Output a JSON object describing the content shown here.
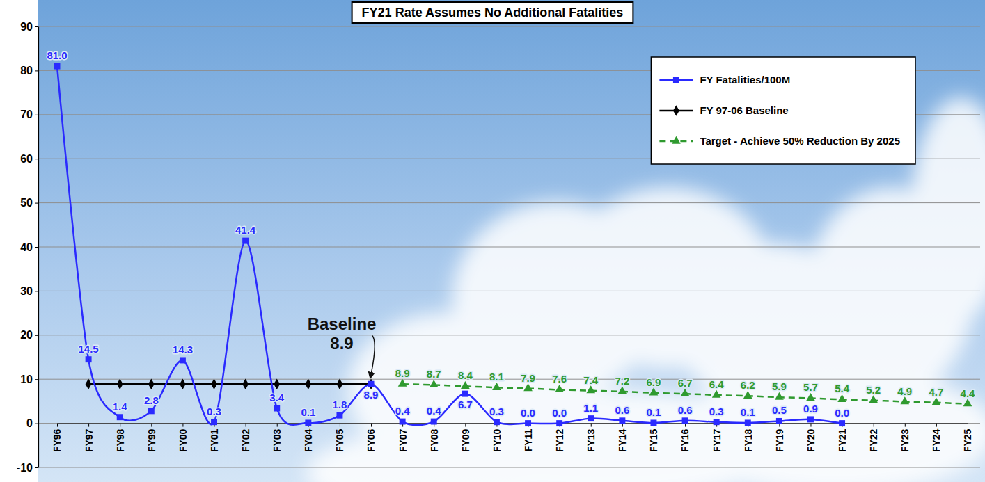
{
  "chart_data": {
    "type": "line",
    "title": "FY21 Rate Assumes No Additional Fatalities",
    "categories": [
      "FY96",
      "FY97",
      "FY98",
      "FY99",
      "FY00",
      "FY01",
      "FY02",
      "FY03",
      "FY04",
      "FY05",
      "FY06",
      "FY07",
      "FY08",
      "FY09",
      "FY10",
      "FY11",
      "FY12",
      "FY13",
      "FY14",
      "FY15",
      "FY16",
      "FY17",
      "FY18",
      "FY19",
      "FY20",
      "FY21",
      "FY22",
      "FY23",
      "FY24",
      "FY25"
    ],
    "ylim": [
      -10,
      90
    ],
    "yticks": [
      -10,
      0,
      10,
      20,
      30,
      40,
      50,
      60,
      70,
      80,
      90
    ],
    "grid": true,
    "legend": "upper right",
    "series": [
      {
        "name": "FY Fatalities/100M",
        "color": "#2a2aff",
        "marker": "square",
        "line_style": "smooth",
        "data_labels": true,
        "values": [
          81.0,
          14.5,
          1.4,
          2.8,
          14.3,
          0.3,
          41.4,
          3.4,
          0.1,
          1.8,
          8.9,
          0.4,
          0.4,
          6.7,
          0.3,
          0.0,
          0.0,
          1.1,
          0.6,
          0.1,
          0.6,
          0.3,
          0.1,
          0.5,
          0.9,
          0.0,
          null,
          null,
          null,
          null
        ],
        "value_labels": [
          "81.0",
          "14.5",
          "1.4",
          "2.8",
          "14.3",
          "0.3",
          "41.4",
          "3.4",
          "0.1",
          "1.8",
          "8.9",
          "0.4",
          "0.4",
          "6.7",
          "0.3",
          "0.0",
          "0.0",
          "1.1",
          "0.6",
          "0.1",
          "0.6",
          "0.3",
          "0.1",
          "0.5",
          "0.9",
          "0.0",
          null,
          null,
          null,
          null
        ]
      },
      {
        "name": "FY 97-06 Baseline",
        "color": "#000000",
        "marker": "diamond",
        "line_style": "solid",
        "data_labels": false,
        "values": [
          null,
          8.9,
          8.9,
          8.9,
          8.9,
          8.9,
          8.9,
          8.9,
          8.9,
          8.9,
          8.9,
          null,
          null,
          null,
          null,
          null,
          null,
          null,
          null,
          null,
          null,
          null,
          null,
          null,
          null,
          null,
          null,
          null,
          null,
          null
        ]
      },
      {
        "name": "Target - Achieve 50% Reduction By 2025",
        "color": "#2f9a2f",
        "marker": "triangle",
        "line_style": "dashed",
        "data_labels": true,
        "values": [
          null,
          null,
          null,
          null,
          null,
          null,
          null,
          null,
          null,
          null,
          null,
          8.9,
          8.7,
          8.4,
          8.1,
          7.9,
          7.6,
          7.4,
          7.2,
          6.9,
          6.7,
          6.4,
          6.2,
          5.9,
          5.7,
          5.4,
          5.2,
          4.9,
          4.7,
          4.4
        ]
      }
    ],
    "annotation": {
      "text": [
        "Baseline",
        "8.9"
      ],
      "x": "FY06",
      "y": 8.9
    }
  }
}
